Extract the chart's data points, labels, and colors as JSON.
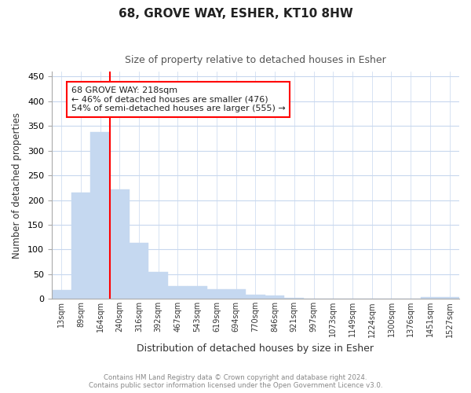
{
  "title": "68, GROVE WAY, ESHER, KT10 8HW",
  "subtitle": "Size of property relative to detached houses in Esher",
  "xlabel": "Distribution of detached houses by size in Esher",
  "ylabel": "Number of detached properties",
  "bar_color": "#c5d8f0",
  "bar_edge_color": "#c5d8f0",
  "background_color": "#ffffff",
  "grid_color": "#c8d8ee",
  "categories": [
    "13sqm",
    "89sqm",
    "164sqm",
    "240sqm",
    "316sqm",
    "392sqm",
    "467sqm",
    "543sqm",
    "619sqm",
    "694sqm",
    "770sqm",
    "846sqm",
    "921sqm",
    "997sqm",
    "1073sqm",
    "1149sqm",
    "1224sqm",
    "1300sqm",
    "1376sqm",
    "1451sqm",
    "1527sqm"
  ],
  "values": [
    18,
    215,
    338,
    222,
    113,
    54,
    26,
    26,
    20,
    20,
    8,
    6,
    2,
    1,
    1,
    0,
    0,
    0,
    0,
    3,
    3
  ],
  "ylim": [
    0,
    460
  ],
  "yticks": [
    0,
    50,
    100,
    150,
    200,
    250,
    300,
    350,
    400,
    450
  ],
  "red_line_x": 3.0,
  "annotation_text_line1": "68 GROVE WAY: 218sqm",
  "annotation_text_line2": "← 46% of detached houses are smaller (476)",
  "annotation_text_line3": "54% of semi-detached houses are larger (555) →",
  "footer_line1": "Contains HM Land Registry data © Crown copyright and database right 2024.",
  "footer_line2": "Contains public sector information licensed under the Open Government Licence v3.0."
}
